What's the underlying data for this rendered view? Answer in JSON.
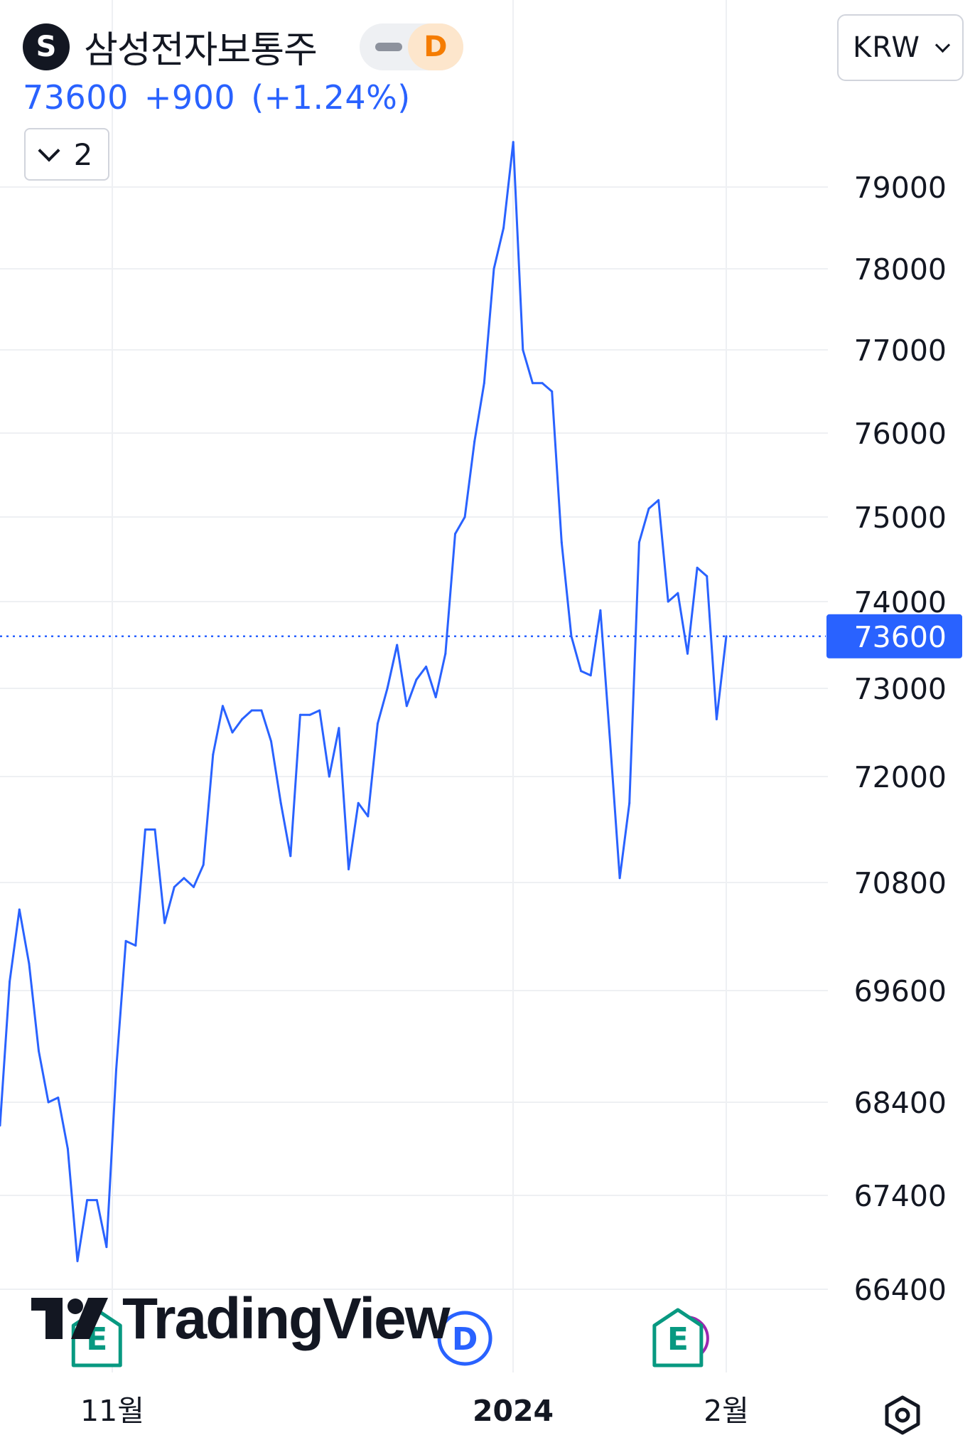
{
  "header": {
    "symbol_badge": "S",
    "symbol_name": "삼성전자보통주",
    "interval": "D",
    "last_price": "73600",
    "change": "+900",
    "change_pct": "(+1.24%)",
    "collapsed_count": "2",
    "currency": "KRW"
  },
  "branding": {
    "logo_text": "TradingView"
  },
  "markers": [
    {
      "kind": "earnings",
      "letter": "E"
    },
    {
      "kind": "dividend",
      "letter": "D"
    },
    {
      "kind": "earnings",
      "letter": "E"
    }
  ],
  "colors": {
    "line": "#2962ff",
    "grid": "#eef0f3",
    "text": "#131722",
    "price_tag": "#2962ff",
    "earnings": "#089981",
    "dividend": "#2962ff",
    "split_accent": "#9c27b0"
  },
  "icons": {
    "settings": "settings-hexagon-icon",
    "collapse": "chevron-down-icon",
    "currency": "chevron-down-icon"
  },
  "chart_data": {
    "type": "line",
    "title": "삼성전자보통주",
    "y_ticks": [
      66400,
      67400,
      68400,
      69600,
      70800,
      72000,
      73000,
      74000,
      75000,
      76000,
      77000,
      78000,
      79000
    ],
    "y_tick_labels": [
      "66400",
      "67400",
      "68400",
      "69600",
      "70800",
      "72000",
      "73000",
      "74000",
      "75000",
      "76000",
      "77000",
      "78000",
      "79000"
    ],
    "x_tick_labels": [
      "11월",
      "2024",
      "2월"
    ],
    "last_price": 73600,
    "last_price_label": "73600",
    "series": [
      {
        "values": [
          68150,
          69700,
          70500,
          69900,
          68950,
          68400,
          68450,
          67900,
          66700,
          67350,
          67350,
          66850,
          68750,
          70150,
          70100,
          71400,
          71400,
          70350,
          70750,
          70850,
          70750,
          71000,
          72250,
          72800,
          72500,
          72650,
          72750,
          72750,
          72400,
          71700,
          71100,
          72700,
          72700,
          72750,
          72000,
          72550,
          70950,
          71700,
          71550,
          72600,
          73000,
          73500,
          72800,
          73100,
          73250,
          72900,
          73400,
          74800,
          75000,
          75900,
          76600,
          78000,
          78500,
          79550,
          77000,
          76600,
          76600,
          76500,
          74700,
          73600,
          73200,
          73150,
          73900,
          72400,
          70850,
          71700,
          74700,
          75100,
          75200,
          74000,
          74100,
          73400,
          74400,
          74300,
          72650,
          73600
        ]
      }
    ],
    "markers": [
      {
        "type": "earnings",
        "x_index": 10
      },
      {
        "type": "dividend",
        "x_index": 48
      },
      {
        "type": "earnings",
        "x_index": 70
      }
    ],
    "grid": true,
    "legend": "none"
  }
}
